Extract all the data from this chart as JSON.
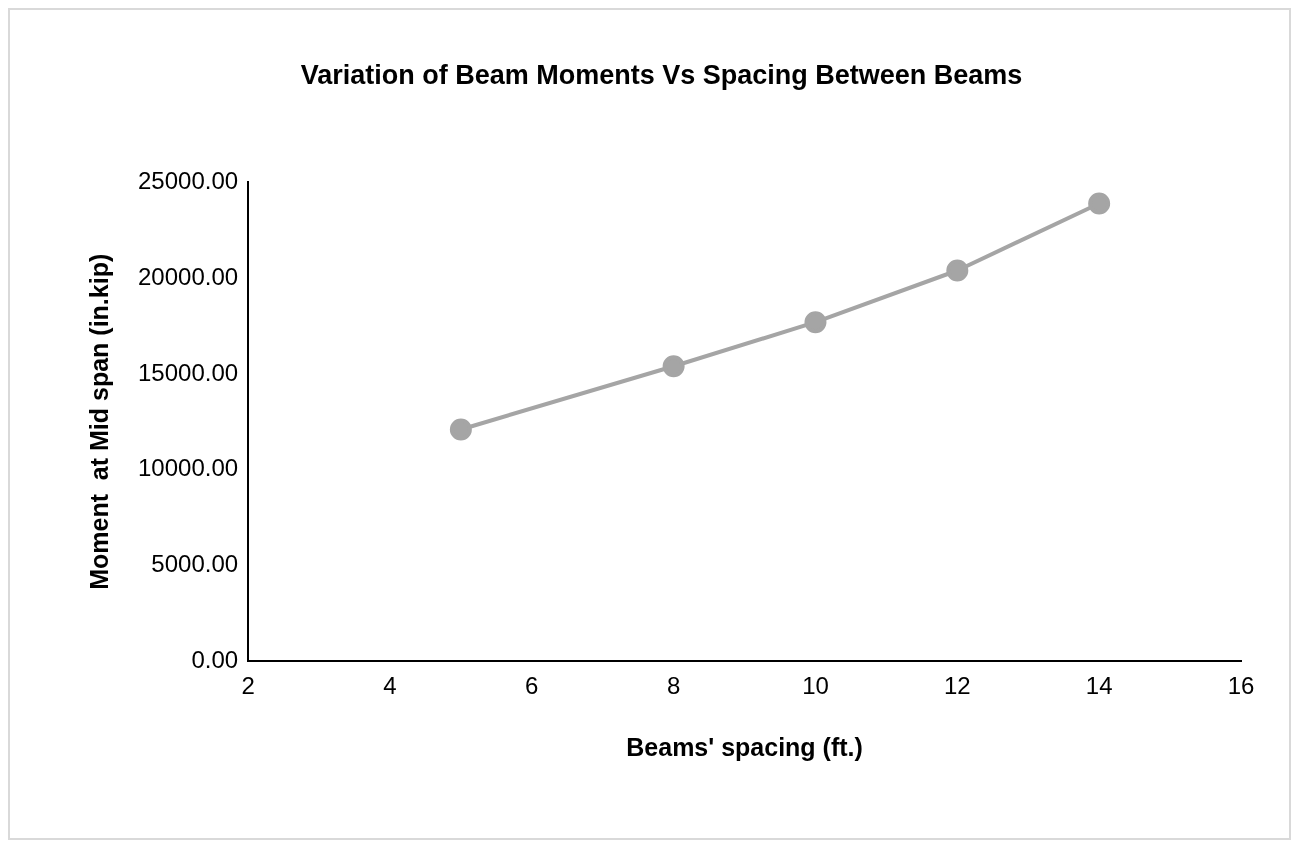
{
  "chart_data": {
    "type": "line",
    "title": "Variation of Beam Moments Vs Spacing Between Beams",
    "xlabel": "Beams' spacing (ft.)",
    "ylabel": "Moment  at Mid span (in.kip)",
    "x": [
      5,
      8,
      10,
      12,
      14
    ],
    "series": [
      {
        "color": "#a5a5a5",
        "values": [
          12100,
          15400,
          17700,
          20400,
          23900
        ]
      }
    ],
    "xlim": [
      2,
      16
    ],
    "xticks": [
      2,
      4,
      6,
      8,
      10,
      12,
      14,
      16
    ],
    "ylim": [
      0,
      25000
    ],
    "yticks": [
      {
        "value": 0,
        "label": "0.00"
      },
      {
        "value": 5000,
        "label": "5000.00"
      },
      {
        "value": 10000,
        "label": "10000.00"
      },
      {
        "value": 15000,
        "label": "15000.00"
      },
      {
        "value": 20000,
        "label": "20000.00"
      },
      {
        "value": 25000,
        "label": "25000.00"
      }
    ],
    "grid": false,
    "legend": false,
    "marker": "circle",
    "line_style": "solid"
  }
}
